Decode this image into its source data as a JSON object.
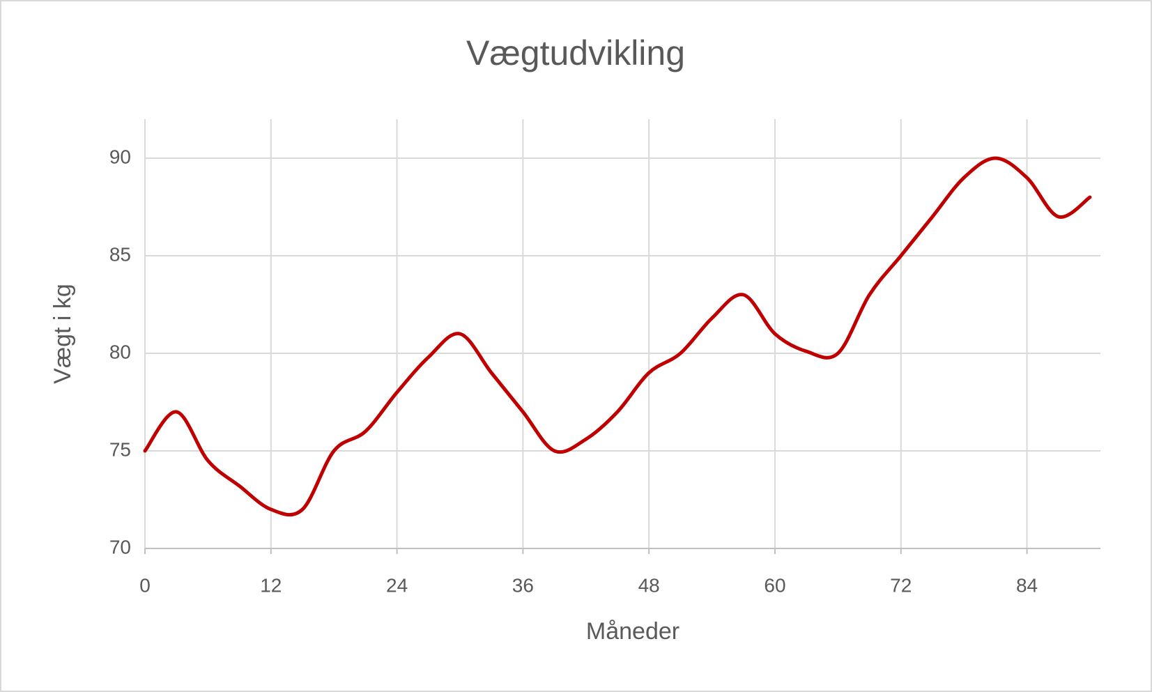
{
  "chart_data": {
    "type": "line",
    "title": "Vægtudvikling",
    "x_label": "Måneder",
    "y_label": "Vægt i kg",
    "x": [
      0,
      3,
      6,
      9,
      12,
      15,
      18,
      21,
      24,
      27,
      30,
      33,
      36,
      39,
      42,
      45,
      48,
      51,
      54,
      57,
      60,
      63,
      66,
      69,
      72,
      75,
      78,
      81,
      84,
      87,
      90
    ],
    "series": [
      {
        "color": "#c00000",
        "values": [
          75,
          77,
          74.5,
          73.2,
          72,
          72,
          75,
          76,
          78,
          79.8,
          81,
          79,
          77,
          75,
          75.6,
          77,
          79,
          80,
          81.8,
          83,
          81,
          80.1,
          80,
          83,
          85,
          87,
          89,
          90,
          89,
          87,
          88
        ]
      }
    ],
    "xlim": [
      0,
      91
    ],
    "xticks": [
      0,
      12,
      24,
      36,
      48,
      60,
      72,
      84
    ],
    "ylim": [
      70,
      92
    ],
    "yticks": [
      70,
      75,
      80,
      85,
      90
    ],
    "grid": true
  }
}
